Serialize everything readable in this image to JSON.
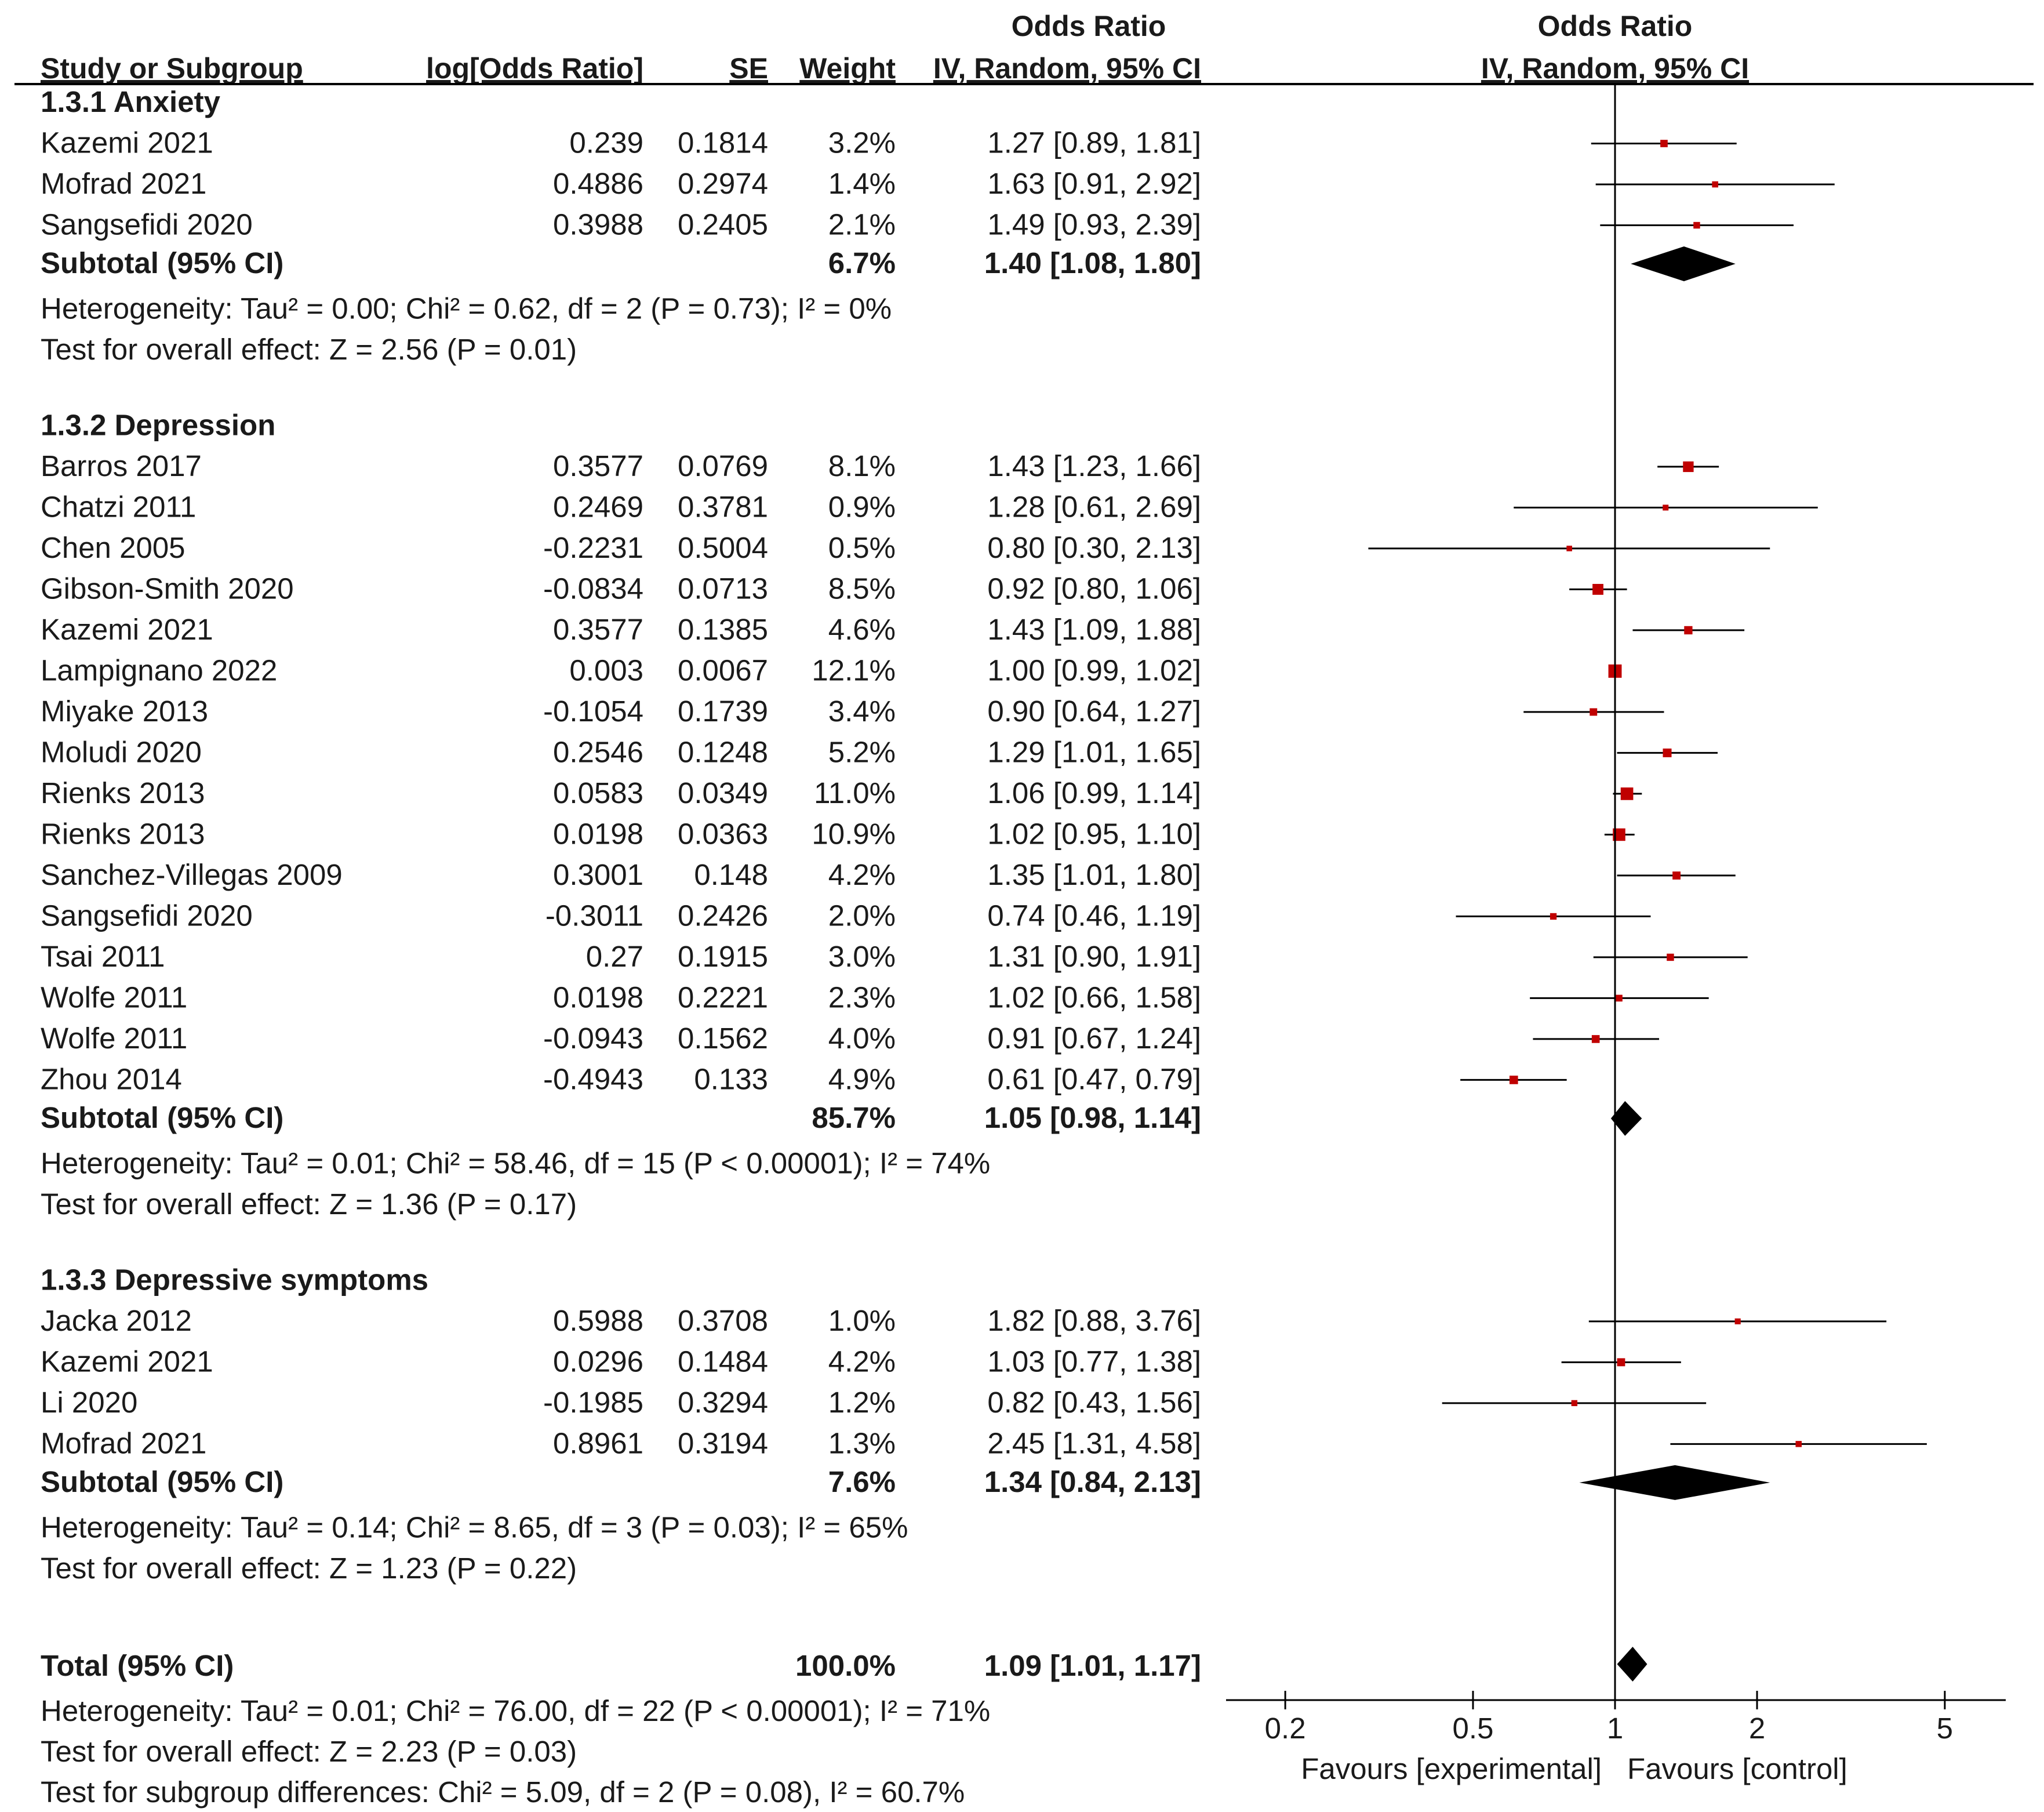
{
  "chart_data": {
    "type": "forest",
    "scale": "log",
    "headers": {
      "study": "Study or Subgroup",
      "logor": "log[Odds Ratio]",
      "se": "SE",
      "weight": "Weight",
      "or_top": "Odds Ratio",
      "or_sub": "IV, Random, 95% CI",
      "plot_top": "Odds Ratio",
      "plot_sub": "IV, Random, 95% CI"
    },
    "groups": [
      {
        "title": "1.3.1 Anxiety",
        "studies": [
          {
            "name": "Kazemi 2021",
            "logor": "0.239",
            "se": "0.1814",
            "weight": "3.2%",
            "ci": "1.27 [0.89, 1.81]",
            "or": 1.27,
            "lo": 0.89,
            "hi": 1.81,
            "w": 3.2
          },
          {
            "name": "Mofrad 2021",
            "logor": "0.4886",
            "se": "0.2974",
            "weight": "1.4%",
            "ci": "1.63 [0.91, 2.92]",
            "or": 1.63,
            "lo": 0.91,
            "hi": 2.92,
            "w": 1.4
          },
          {
            "name": "Sangsefidi 2020",
            "logor": "0.3988",
            "se": "0.2405",
            "weight": "2.1%",
            "ci": "1.49 [0.93, 2.39]",
            "or": 1.49,
            "lo": 0.93,
            "hi": 2.39,
            "w": 2.1
          }
        ],
        "subtotal": {
          "label": "Subtotal (95% CI)",
          "weight": "6.7%",
          "ci": "1.40 [1.08, 1.80]",
          "or": 1.4,
          "lo": 1.08,
          "hi": 1.8
        },
        "heterogeneity": "Heterogeneity: Tau² = 0.00; Chi² = 0.62, df = 2 (P = 0.73); I² = 0%",
        "overall": "Test for overall effect: Z = 2.56 (P = 0.01)"
      },
      {
        "title": "1.3.2 Depression",
        "studies": [
          {
            "name": "Barros 2017",
            "logor": "0.3577",
            "se": "0.0769",
            "weight": "8.1%",
            "ci": "1.43 [1.23, 1.66]",
            "or": 1.43,
            "lo": 1.23,
            "hi": 1.66,
            "w": 8.1
          },
          {
            "name": "Chatzi 2011",
            "logor": "0.2469",
            "se": "0.3781",
            "weight": "0.9%",
            "ci": "1.28 [0.61, 2.69]",
            "or": 1.28,
            "lo": 0.61,
            "hi": 2.69,
            "w": 0.9
          },
          {
            "name": "Chen 2005",
            "logor": "-0.2231",
            "se": "0.5004",
            "weight": "0.5%",
            "ci": "0.80 [0.30, 2.13]",
            "or": 0.8,
            "lo": 0.3,
            "hi": 2.13,
            "w": 0.5
          },
          {
            "name": "Gibson-Smith 2020",
            "logor": "-0.0834",
            "se": "0.0713",
            "weight": "8.5%",
            "ci": "0.92 [0.80, 1.06]",
            "or": 0.92,
            "lo": 0.8,
            "hi": 1.06,
            "w": 8.5
          },
          {
            "name": "Kazemi 2021",
            "logor": "0.3577",
            "se": "0.1385",
            "weight": "4.6%",
            "ci": "1.43 [1.09, 1.88]",
            "or": 1.43,
            "lo": 1.09,
            "hi": 1.88,
            "w": 4.6
          },
          {
            "name": "Lampignano 2022",
            "logor": "0.003",
            "se": "0.0067",
            "weight": "12.1%",
            "ci": "1.00 [0.99, 1.02]",
            "or": 1.0,
            "lo": 0.99,
            "hi": 1.02,
            "w": 12.1
          },
          {
            "name": "Miyake 2013",
            "logor": "-0.1054",
            "se": "0.1739",
            "weight": "3.4%",
            "ci": "0.90 [0.64, 1.27]",
            "or": 0.9,
            "lo": 0.64,
            "hi": 1.27,
            "w": 3.4
          },
          {
            "name": "Moludi 2020",
            "logor": "0.2546",
            "se": "0.1248",
            "weight": "5.2%",
            "ci": "1.29 [1.01, 1.65]",
            "or": 1.29,
            "lo": 1.01,
            "hi": 1.65,
            "w": 5.2
          },
          {
            "name": "Rienks 2013",
            "logor": "0.0583",
            "se": "0.0349",
            "weight": "11.0%",
            "ci": "1.06 [0.99, 1.14]",
            "or": 1.06,
            "lo": 0.99,
            "hi": 1.14,
            "w": 11.0
          },
          {
            "name": "Rienks 2013",
            "logor": "0.0198",
            "se": "0.0363",
            "weight": "10.9%",
            "ci": "1.02 [0.95, 1.10]",
            "or": 1.02,
            "lo": 0.95,
            "hi": 1.1,
            "w": 10.9
          },
          {
            "name": "Sanchez-Villegas 2009",
            "logor": "0.3001",
            "se": "0.148",
            "weight": "4.2%",
            "ci": "1.35 [1.01, 1.80]",
            "or": 1.35,
            "lo": 1.01,
            "hi": 1.8,
            "w": 4.2
          },
          {
            "name": "Sangsefidi 2020",
            "logor": "-0.3011",
            "se": "0.2426",
            "weight": "2.0%",
            "ci": "0.74 [0.46, 1.19]",
            "or": 0.74,
            "lo": 0.46,
            "hi": 1.19,
            "w": 2.0
          },
          {
            "name": "Tsai 2011",
            "logor": "0.27",
            "se": "0.1915",
            "weight": "3.0%",
            "ci": "1.31 [0.90, 1.91]",
            "or": 1.31,
            "lo": 0.9,
            "hi": 1.91,
            "w": 3.0
          },
          {
            "name": "Wolfe 2011",
            "logor": "0.0198",
            "se": "0.2221",
            "weight": "2.3%",
            "ci": "1.02 [0.66, 1.58]",
            "or": 1.02,
            "lo": 0.66,
            "hi": 1.58,
            "w": 2.3
          },
          {
            "name": "Wolfe 2011",
            "logor": "-0.0943",
            "se": "0.1562",
            "weight": "4.0%",
            "ci": "0.91 [0.67, 1.24]",
            "or": 0.91,
            "lo": 0.67,
            "hi": 1.24,
            "w": 4.0
          },
          {
            "name": "Zhou 2014",
            "logor": "-0.4943",
            "se": "0.133",
            "weight": "4.9%",
            "ci": "0.61 [0.47, 0.79]",
            "or": 0.61,
            "lo": 0.47,
            "hi": 0.79,
            "w": 4.9
          }
        ],
        "subtotal": {
          "label": "Subtotal (95% CI)",
          "weight": "85.7%",
          "ci": "1.05 [0.98, 1.14]",
          "or": 1.05,
          "lo": 0.98,
          "hi": 1.14
        },
        "heterogeneity": "Heterogeneity: Tau² = 0.01; Chi² = 58.46, df = 15 (P < 0.00001); I² = 74%",
        "overall": "Test for overall effect: Z = 1.36 (P = 0.17)"
      },
      {
        "title": "1.3.3 Depressive symptoms",
        "studies": [
          {
            "name": "Jacka 2012",
            "logor": "0.5988",
            "se": "0.3708",
            "weight": "1.0%",
            "ci": "1.82 [0.88, 3.76]",
            "or": 1.82,
            "lo": 0.88,
            "hi": 3.76,
            "w": 1.0
          },
          {
            "name": "Kazemi 2021",
            "logor": "0.0296",
            "se": "0.1484",
            "weight": "4.2%",
            "ci": "1.03 [0.77, 1.38]",
            "or": 1.03,
            "lo": 0.77,
            "hi": 1.38,
            "w": 4.2
          },
          {
            "name": "Li 2020",
            "logor": "-0.1985",
            "se": "0.3294",
            "weight": "1.2%",
            "ci": "0.82 [0.43, 1.56]",
            "or": 0.82,
            "lo": 0.43,
            "hi": 1.56,
            "w": 1.2
          },
          {
            "name": "Mofrad 2021",
            "logor": "0.8961",
            "se": "0.3194",
            "weight": "1.3%",
            "ci": "2.45 [1.31, 4.58]",
            "or": 2.45,
            "lo": 1.31,
            "hi": 4.58,
            "w": 1.3
          }
        ],
        "subtotal": {
          "label": "Subtotal (95% CI)",
          "weight": "7.6%",
          "ci": "1.34 [0.84, 2.13]",
          "or": 1.34,
          "lo": 0.84,
          "hi": 2.13
        },
        "heterogeneity": "Heterogeneity: Tau² = 0.14; Chi² = 8.65, df = 3 (P = 0.03); I² = 65%",
        "overall": "Test for overall effect: Z = 1.23 (P = 0.22)"
      }
    ],
    "total": {
      "label": "Total (95% CI)",
      "weight": "100.0%",
      "ci": "1.09 [1.01, 1.17]",
      "or": 1.09,
      "lo": 1.01,
      "hi": 1.17,
      "heterogeneity": "Heterogeneity: Tau² = 0.01; Chi² = 76.00, df = 22 (P < 0.00001); I² = 71%",
      "overall": "Test for overall effect: Z = 2.23 (P = 0.03)",
      "subgroup": "Test for subgroup differences: Chi² = 5.09, df = 2 (P = 0.08), I² = 60.7%"
    },
    "axis": {
      "ticks": [
        0.2,
        0.5,
        1,
        2,
        5
      ],
      "tick_labels": [
        "0.2",
        "0.5",
        "1",
        "2",
        "5"
      ],
      "favours_left": "Favours [experimental]",
      "favours_right": "Favours [control]"
    },
    "colors": {
      "square": "#c00000",
      "diamond": "#000000",
      "line": "#000000"
    }
  }
}
